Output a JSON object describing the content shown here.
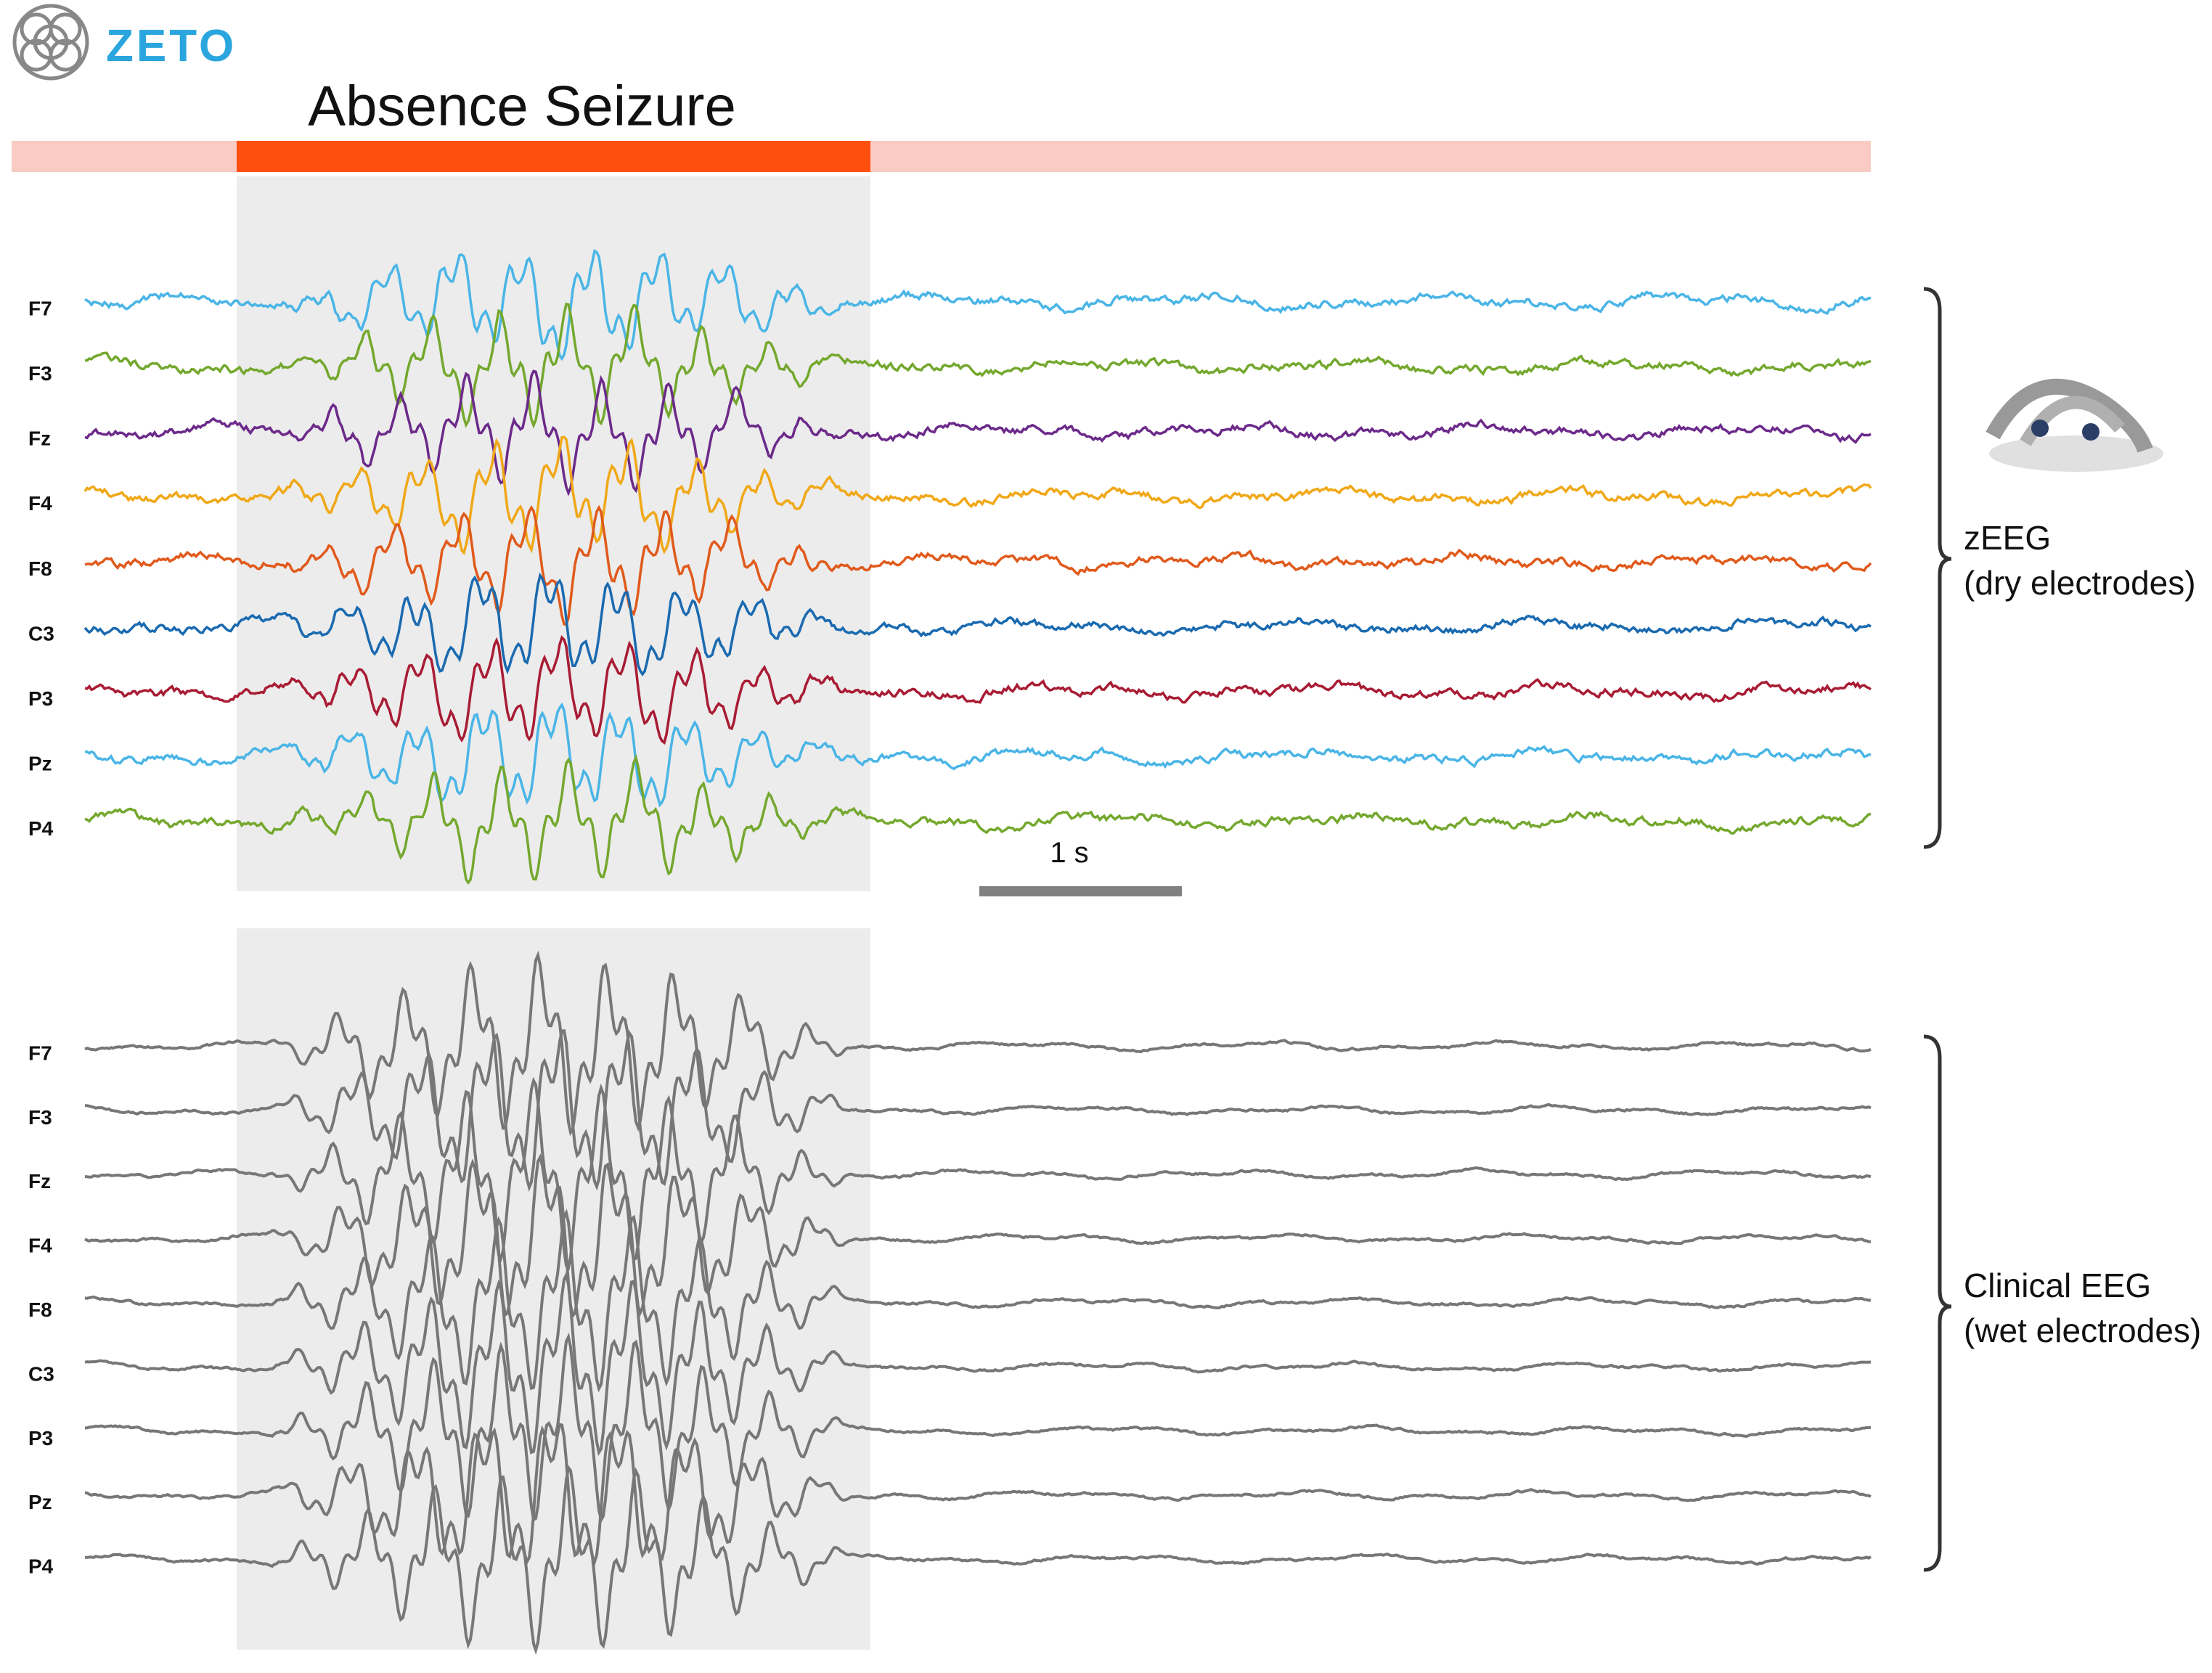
{
  "logo": "ZETO",
  "title": "Absence Seizure",
  "scale_label": "1 s",
  "panels": [
    {
      "label_lines": [
        "zEEG",
        "(dry electrodes)"
      ],
      "channels": [
        {
          "name": "F7",
          "color": "#4ab5e6"
        },
        {
          "name": "F3",
          "color": "#74a82e"
        },
        {
          "name": "Fz",
          "color": "#6c2a8a"
        },
        {
          "name": "F4",
          "color": "#f0a818"
        },
        {
          "name": "F8",
          "color": "#e05a1c"
        },
        {
          "name": "C3",
          "color": "#1a6ab0"
        },
        {
          "name": "P3",
          "color": "#a81c34"
        },
        {
          "name": "Pz",
          "color": "#4ab5e6"
        },
        {
          "name": "P4",
          "color": "#74a82e"
        }
      ]
    },
    {
      "label_lines": [
        "Clinical EEG",
        "(wet electrodes)"
      ],
      "color": "#777777",
      "channels": [
        {
          "name": "F7"
        },
        {
          "name": "F3"
        },
        {
          "name": "Fz"
        },
        {
          "name": "F4"
        },
        {
          "name": "F8"
        },
        {
          "name": "C3"
        },
        {
          "name": "P3"
        },
        {
          "name": "Pz"
        },
        {
          "name": "P4"
        }
      ]
    }
  ]
}
